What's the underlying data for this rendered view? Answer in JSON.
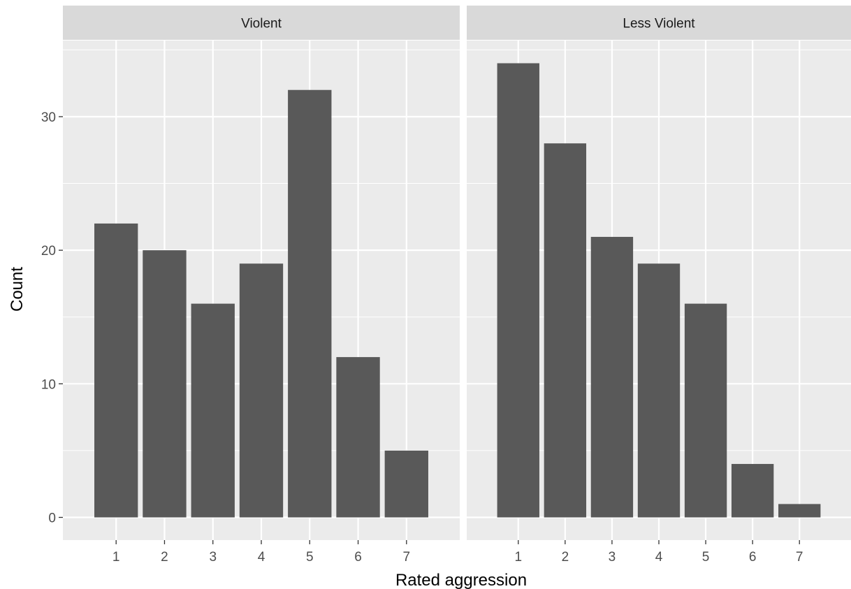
{
  "chart_data": {
    "type": "bar",
    "xlabel": "Rated aggression",
    "ylabel": "Count",
    "ylim": [
      -1.7,
      35.7
    ],
    "yticks": [
      0,
      10,
      20,
      30
    ],
    "categories": [
      "1",
      "2",
      "3",
      "4",
      "5",
      "6",
      "7"
    ],
    "facets": [
      {
        "name": "Violent",
        "values": [
          22,
          20,
          16,
          19,
          32,
          12,
          5
        ]
      },
      {
        "name": "Less Violent",
        "values": [
          34,
          28,
          21,
          19,
          16,
          4,
          1
        ]
      }
    ],
    "bar_color": "#595959",
    "panel_background": "#ebebeb",
    "strip_background": "#d9d9d9",
    "grid": true
  }
}
